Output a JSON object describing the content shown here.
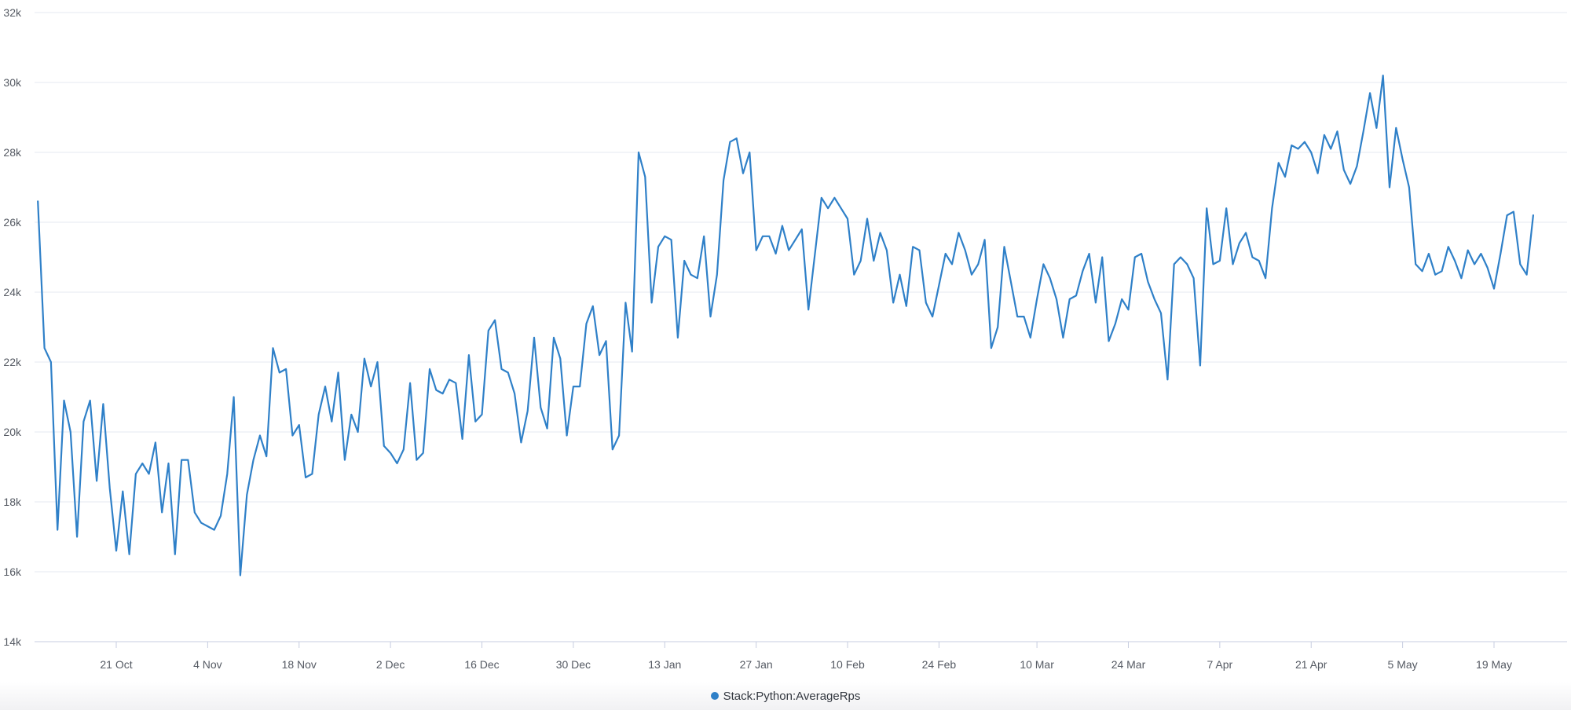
{
  "chart_data": {
    "type": "line",
    "title": "",
    "xlabel": "",
    "ylabel": "",
    "ylim": [
      14000,
      32000
    ],
    "y_ticks": [
      {
        "value": 14000,
        "label": "14k"
      },
      {
        "value": 16000,
        "label": "16k"
      },
      {
        "value": 18000,
        "label": "18k"
      },
      {
        "value": 20000,
        "label": "20k"
      },
      {
        "value": 22000,
        "label": "22k"
      },
      {
        "value": 24000,
        "label": "24k"
      },
      {
        "value": 26000,
        "label": "26k"
      },
      {
        "value": 28000,
        "label": "28k"
      },
      {
        "value": 30000,
        "label": "30k"
      },
      {
        "value": 32000,
        "label": "32k"
      }
    ],
    "x_ticks": [
      {
        "date": "2023-10-21",
        "label": "21 Oct"
      },
      {
        "date": "2023-11-04",
        "label": "4 Nov"
      },
      {
        "date": "2023-11-18",
        "label": "18 Nov"
      },
      {
        "date": "2023-12-02",
        "label": "2 Dec"
      },
      {
        "date": "2023-12-16",
        "label": "16 Dec"
      },
      {
        "date": "2023-12-30",
        "label": "30 Dec"
      },
      {
        "date": "2024-01-13",
        "label": "13 Jan"
      },
      {
        "date": "2024-01-27",
        "label": "27 Jan"
      },
      {
        "date": "2024-02-10",
        "label": "10 Feb"
      },
      {
        "date": "2024-02-24",
        "label": "24 Feb"
      },
      {
        "date": "2024-03-10",
        "label": "10 Mar"
      },
      {
        "date": "2024-03-24",
        "label": "24 Mar"
      },
      {
        "date": "2024-04-07",
        "label": "7 Apr"
      },
      {
        "date": "2024-04-21",
        "label": "21 Apr"
      },
      {
        "date": "2024-05-05",
        "label": "5 May"
      },
      {
        "date": "2024-05-19",
        "label": "19 May"
      }
    ],
    "x_start": "2023-10-09",
    "grid": true,
    "legend_position": "bottom",
    "series": [
      {
        "name": "Stack:Python:AverageRps",
        "color": "#2f80c8",
        "values": [
          26600,
          22400,
          22000,
          17200,
          20900,
          20000,
          17000,
          20300,
          20900,
          18600,
          20800,
          18400,
          16600,
          18300,
          16500,
          18800,
          19100,
          18800,
          19700,
          17700,
          19100,
          16500,
          19200,
          19200,
          17700,
          17400,
          17300,
          17200,
          17600,
          18800,
          21000,
          15900,
          18200,
          19200,
          19900,
          19300,
          22400,
          21700,
          21800,
          19900,
          20200,
          18700,
          18800,
          20500,
          21300,
          20300,
          21700,
          19200,
          20500,
          20000,
          22100,
          21300,
          22000,
          19600,
          19400,
          19100,
          19500,
          21400,
          19200,
          19400,
          21800,
          21200,
          21100,
          21500,
          21400,
          19800,
          22200,
          20300,
          20500,
          22900,
          23200,
          21800,
          21700,
          21100,
          19700,
          20600,
          22700,
          20700,
          20100,
          22700,
          22100,
          19900,
          21300,
          21300,
          23100,
          23600,
          22200,
          22600,
          19500,
          19900,
          23700,
          22300,
          28000,
          27300,
          23700,
          25300,
          25600,
          25500,
          22700,
          24900,
          24500,
          24400,
          25600,
          23300,
          24500,
          27200,
          28300,
          28400,
          27400,
          28000,
          25200,
          25600,
          25600,
          25100,
          25900,
          25200,
          25500,
          25800,
          23500,
          25100,
          26700,
          26400,
          26700,
          26400,
          26100,
          24500,
          24900,
          26100,
          24900,
          25700,
          25200,
          23700,
          24500,
          23600,
          25300,
          25200,
          23700,
          23300,
          24200,
          25100,
          24800,
          25700,
          25200,
          24500,
          24800,
          25500,
          22400,
          23000,
          25300,
          24300,
          23300,
          23300,
          22700,
          23800,
          24800,
          24400,
          23800,
          22700,
          23800,
          23900,
          24600,
          25100,
          23700,
          25000,
          22600,
          23100,
          23800,
          23500,
          25000,
          25100,
          24300,
          23800,
          23400,
          21500,
          24800,
          25000,
          24800,
          24400,
          21900,
          26400,
          24800,
          24900,
          26400,
          24800,
          25400,
          25700,
          25000,
          24900,
          24400,
          26400,
          27700,
          27300,
          28200,
          28100,
          28300,
          28000,
          27400,
          28500,
          28100,
          28600,
          27500,
          27100,
          27600,
          28600,
          29700,
          28700,
          30200,
          27000,
          28700,
          27800,
          27000,
          24800,
          24600,
          25100,
          24500,
          24600,
          25300,
          24900,
          24400,
          25200,
          24800,
          25100,
          24700,
          24100,
          25100,
          26200,
          26300,
          24800,
          24500,
          26200
        ]
      }
    ]
  }
}
